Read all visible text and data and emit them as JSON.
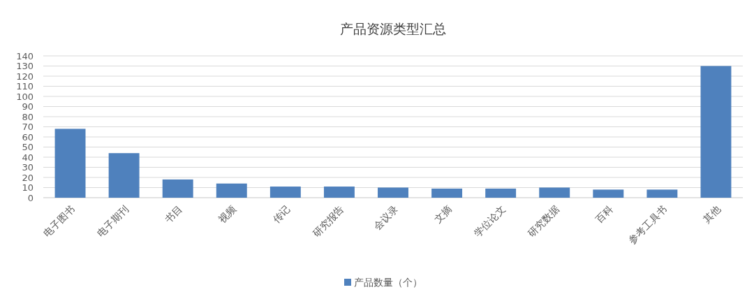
{
  "chart_data": {
    "type": "bar",
    "title": "产品资源类型汇总",
    "categories": [
      "电子图书",
      "电子期刊",
      "书目",
      "视频",
      "传记",
      "研究报告",
      "会议录",
      "文摘",
      "学位论文",
      "研究数据",
      "百科",
      "参考工具书",
      "其他"
    ],
    "series": [
      {
        "name": "产品数量（个）",
        "color": "#4f81bd",
        "values": [
          68,
          44,
          18,
          14,
          11,
          11,
          10,
          9,
          9,
          10,
          8,
          8,
          130
        ]
      }
    ],
    "ylim": [
      0,
      140
    ],
    "yticks": [
      0,
      10,
      20,
      30,
      40,
      50,
      60,
      70,
      80,
      90,
      100,
      110,
      120,
      130,
      140
    ],
    "grid": "y",
    "legend": "bottom"
  }
}
